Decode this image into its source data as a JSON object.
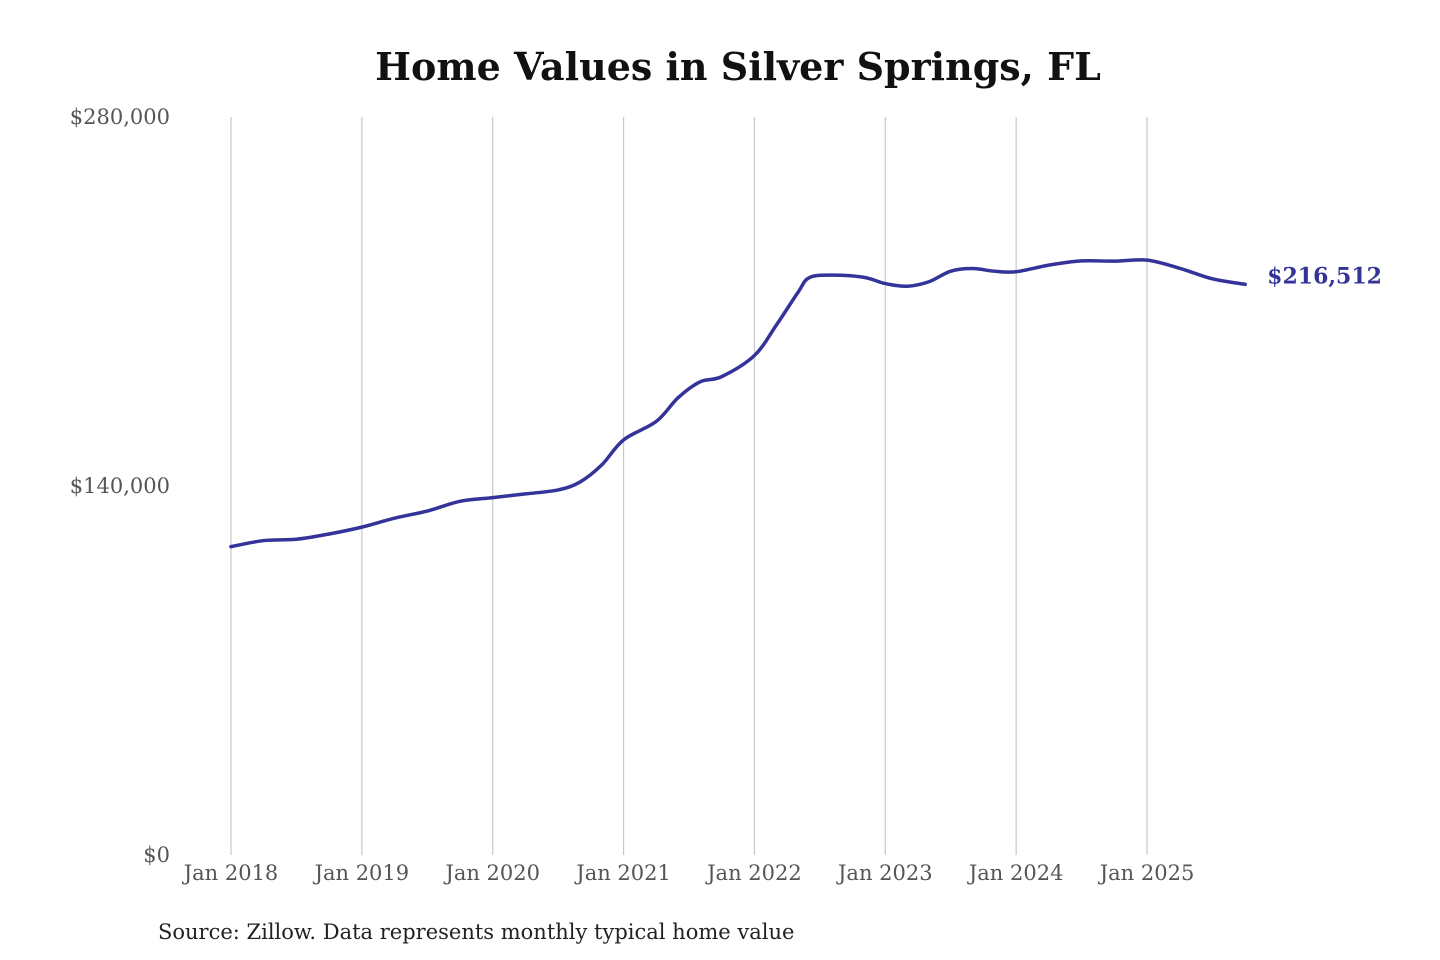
{
  "chart_data": {
    "type": "line",
    "title": "Home Values in Silver Springs, FL",
    "source": "Source: Zillow. Data represents monthly typical home value",
    "xlabel": "",
    "ylabel": "",
    "ylim": [
      0,
      280000
    ],
    "y_ticks": [
      0,
      140000,
      280000
    ],
    "y_tick_labels": [
      "$0",
      "$140,000",
      "$280,000"
    ],
    "x_ticks": [
      "2018-01",
      "2019-01",
      "2020-01",
      "2021-01",
      "2022-01",
      "2023-01",
      "2024-01",
      "2025-01"
    ],
    "x_tick_labels": [
      "Jan 2018",
      "Jan 2019",
      "Jan 2020",
      "Jan 2021",
      "Jan 2022",
      "Jan 2023",
      "Jan 2024",
      "Jan 2025"
    ],
    "grid": "vertical",
    "legend": "none",
    "line_color": "#33339a",
    "end_label": "$216,512",
    "series": [
      {
        "x": [
          "2018-01",
          "2018-04",
          "2018-07",
          "2018-10",
          "2019-01",
          "2019-04",
          "2019-07",
          "2019-10",
          "2020-01",
          "2020-04",
          "2020-07",
          "2020-09",
          "2020-11",
          "2021-01",
          "2021-04",
          "2021-06",
          "2021-08",
          "2021-10",
          "2022-01",
          "2022-03",
          "2022-05",
          "2022-06",
          "2022-08",
          "2022-11",
          "2023-01",
          "2023-03",
          "2023-05",
          "2023-07",
          "2023-09",
          "2023-11",
          "2024-01",
          "2024-04",
          "2024-07",
          "2024-10",
          "2025-01",
          "2025-04",
          "2025-07",
          "2025-10"
        ],
        "values": [
          117000,
          119300,
          119800,
          121800,
          124400,
          127800,
          130500,
          134200,
          135600,
          137000,
          138500,
          141500,
          148000,
          157500,
          164500,
          173500,
          179500,
          181500,
          189500,
          201000,
          213500,
          219000,
          220000,
          219200,
          216800,
          215800,
          217500,
          221500,
          222500,
          221500,
          221300,
          223800,
          225400,
          225300,
          225700,
          222600,
          218600,
          216512
        ]
      }
    ]
  }
}
